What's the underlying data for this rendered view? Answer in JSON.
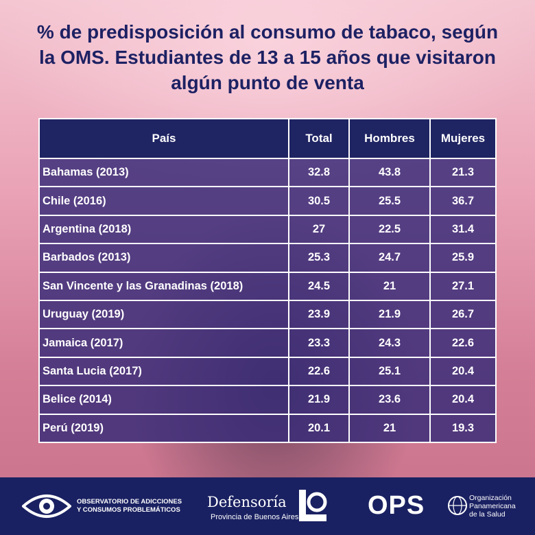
{
  "title": "% de predisposición al consumo de tabaco, según la OMS. Estudiantes de 13 a 15 años que visitaron algún punto de venta",
  "chart_data": {
    "type": "table",
    "columns": [
      "País",
      "Total",
      "Hombres",
      "Mujeres"
    ],
    "rows": [
      [
        "Bahamas (2013)",
        "32.8",
        "43.8",
        "21.3"
      ],
      [
        "Chile (2016)",
        "30.5",
        "25.5",
        "36.7"
      ],
      [
        "Argentina (2018)",
        "27",
        "22.5",
        "31.4"
      ],
      [
        "Barbados (2013)",
        "25.3",
        "24.7",
        "25.9"
      ],
      [
        "San Vincente y las Granadinas (2018)",
        "24.5",
        "21",
        "27.1"
      ],
      [
        "Uruguay (2019)",
        "23.9",
        "21.9",
        "26.7"
      ],
      [
        "Jamaica (2017)",
        "23.3",
        "24.3",
        "22.6"
      ],
      [
        "Santa Lucia (2017)",
        "22.6",
        "25.1",
        "20.4"
      ],
      [
        "Belice (2014)",
        "21.9",
        "23.6",
        "20.4"
      ],
      [
        "Perú (2019)",
        "20.1",
        "21",
        "19.3"
      ]
    ]
  },
  "footer": {
    "observatorio_line1": "OBSERVATORIO DE ADICCIONES",
    "observatorio_line2": "Y CONSUMOS PROBLEMÁTICOS",
    "defensoria_name": "Defensoría",
    "defensoria_sub": "Provincia de Buenos Aires",
    "ops_acronym": "OPS",
    "ops_line1": "Organización",
    "ops_line2": "Panamericana",
    "ops_line3": "de la Salud"
  },
  "colors": {
    "title": "#1d2163",
    "header_bg": "#1f2463",
    "cell_bg": "#342a78",
    "footer_bg": "#1a2162"
  }
}
